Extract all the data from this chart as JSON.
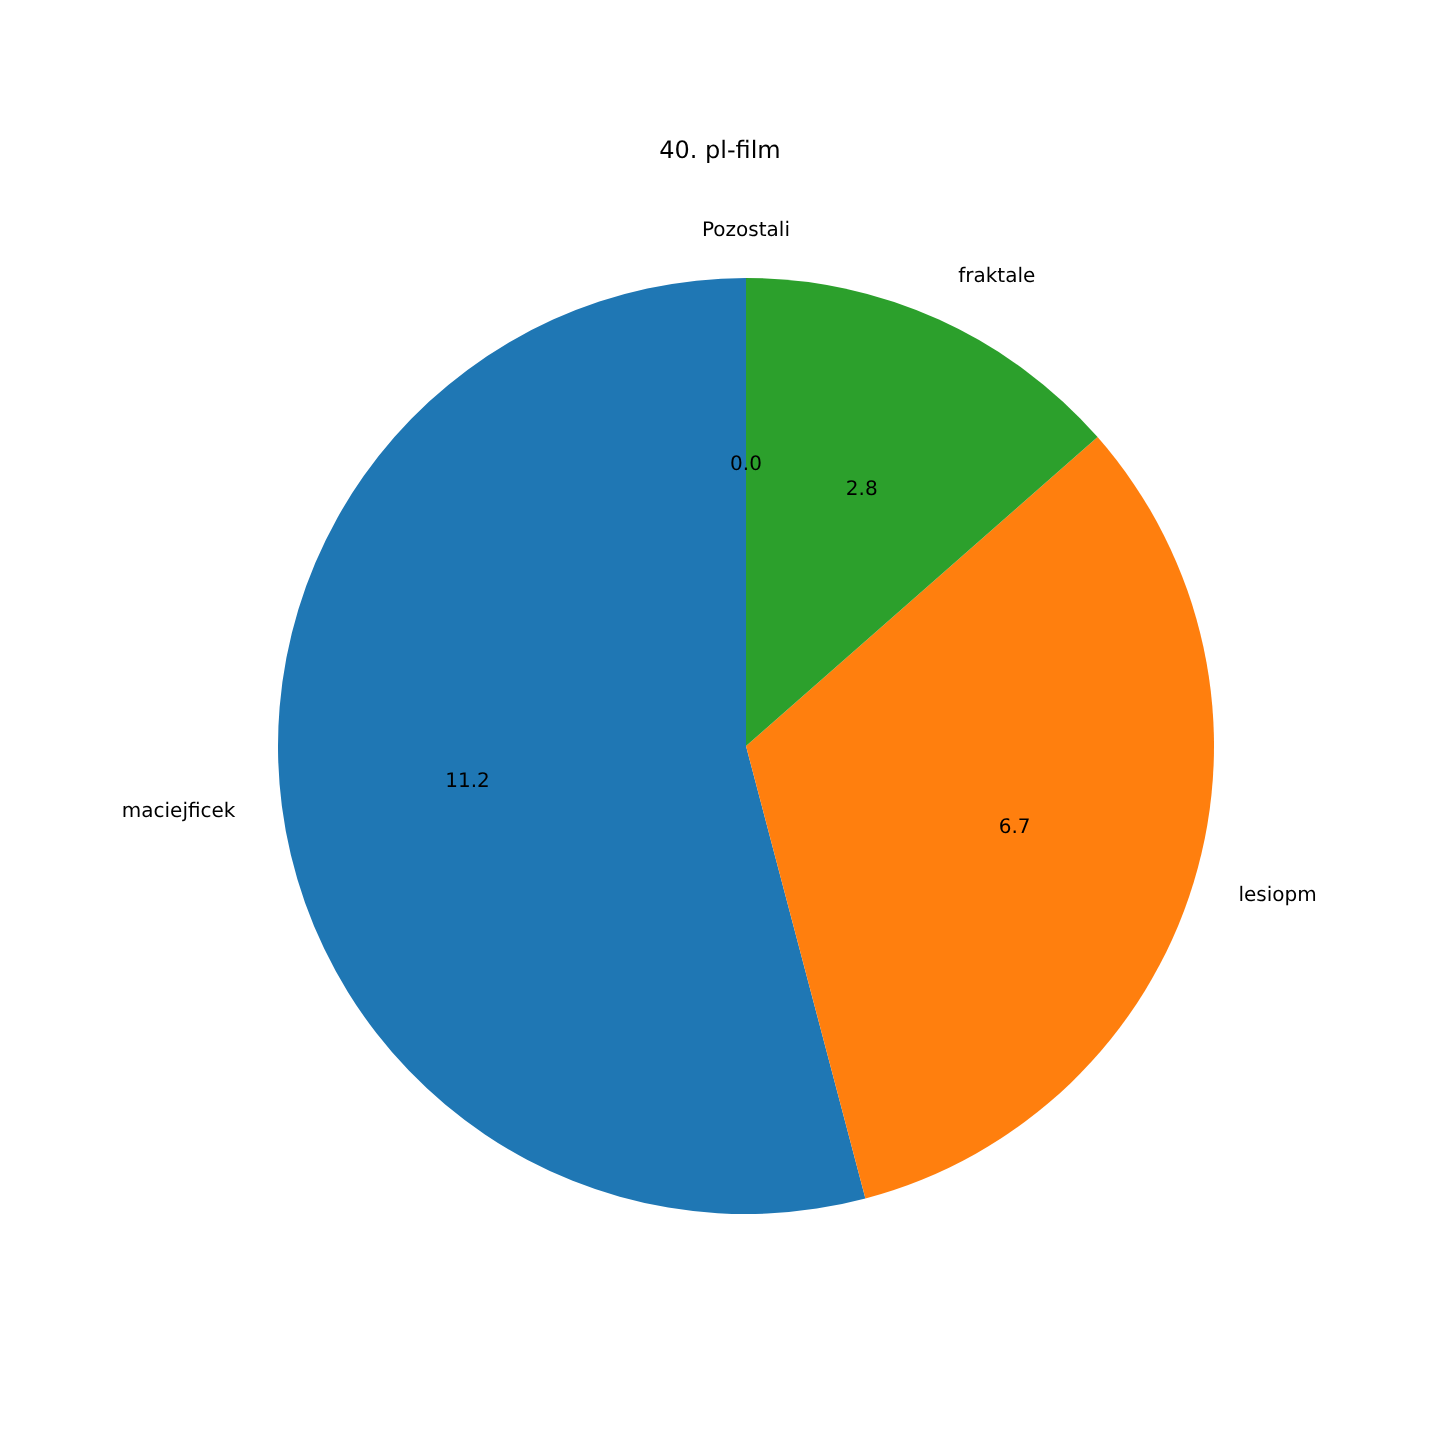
{
  "chart_data": {
    "type": "pie",
    "title": "40. pl-film",
    "categories": [
      "maciejficek",
      "lesiopm",
      "fraktale",
      "Pozostali"
    ],
    "values": [
      11.2,
      6.7,
      2.8,
      0
    ],
    "value_labels": [
      "11.2",
      "6.7",
      "2.8",
      "0.0"
    ],
    "colors": [
      "#1f77b4",
      "#ff7f0e",
      "#2ca02c",
      "#d62728"
    ]
  }
}
